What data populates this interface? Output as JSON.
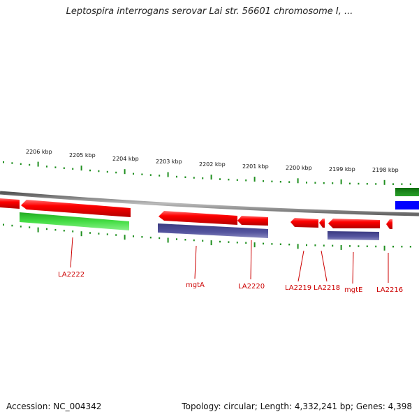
{
  "title": "Leptospira interrogans serovar Lai str. 56601 chromosome I, ...",
  "accession": "Accession: NC_004342",
  "topology": "Topology: circular; Length: 4,332,241 bp; Genes: 4,398",
  "colors": {
    "forward_gene": "#ff0000",
    "reverse_gene": "#ff0000",
    "cds_green": "#33cc33",
    "cds_purple": "#4c4c99",
    "tick_green": "#1f8f1f",
    "label_red": "#cc0000",
    "backbone": "#888888",
    "blue_feature": "#0000ff",
    "dark_green_feature": "#1a8a1a"
  },
  "scale_ticks": [
    "2206 kbp",
    "2205 kbp",
    "2204 kbp",
    "2203 kbp",
    "2202 kbp",
    "2201 kbp",
    "2200 kbp",
    "2199 kbp",
    "2198 kbp"
  ],
  "gene_labels": [
    "LA2222",
    "mgtA",
    "LA2220",
    "LA2219",
    "LA2218",
    "mgtE",
    "LA2216"
  ]
}
